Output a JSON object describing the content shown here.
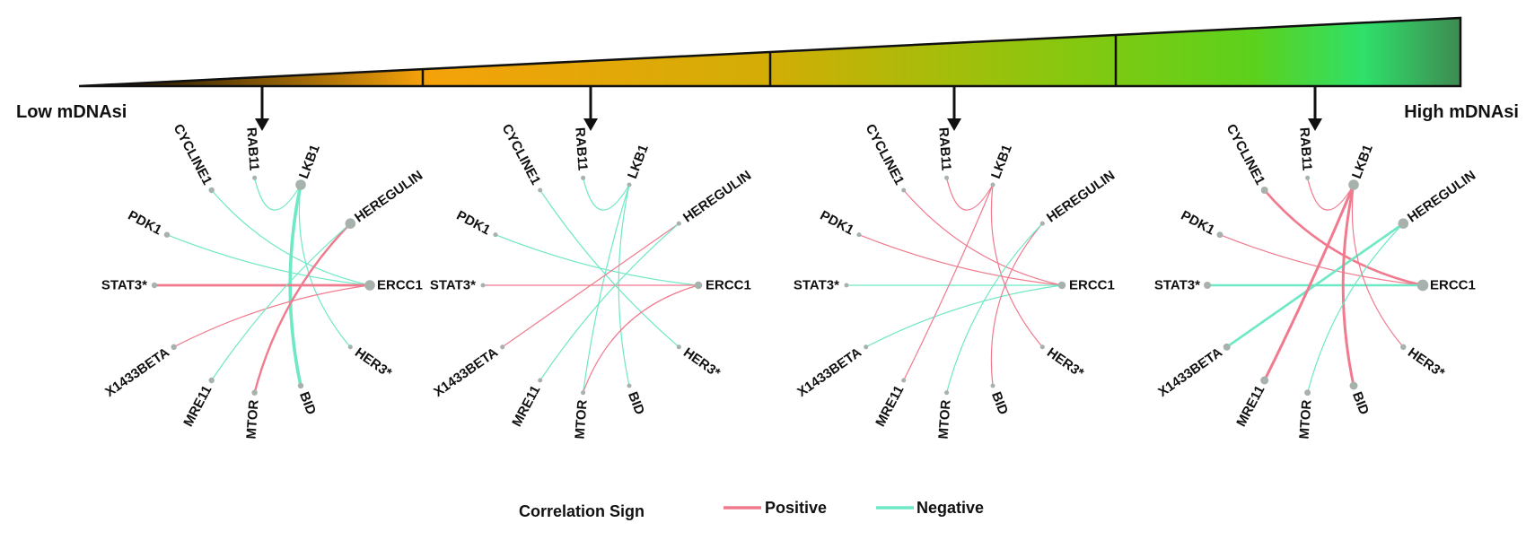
{
  "gradient": {
    "low_label": "Low mDNAsi",
    "high_label": "High mDNAsi",
    "colors": [
      "#000000",
      "#f5a20a",
      "#d2ad05",
      "#8cc60e",
      "#5cd11c",
      "#2fe06a",
      "#3e8a52"
    ]
  },
  "nodes": [
    "CYCLINE1",
    "RAB11",
    "LKB1",
    "HEREGULIN",
    "ERCC1",
    "HER3*",
    "BID",
    "MTOR",
    "MRE11",
    "X1433BETA",
    "STAT3*",
    "PDK1"
  ],
  "colors": {
    "positive": "#f07a8e",
    "negative": "#6ee8c5",
    "node": "#a8b2ad"
  },
  "legend": {
    "title": "Correlation Sign",
    "positive": "Positive",
    "negative": "Negative"
  },
  "networks": [
    {
      "node_weight": {
        "LKB1": 2,
        "HEREGULIN": 2,
        "ERCC1": 2,
        "MTOR": 1,
        "BID": 1,
        "MRE11": 1,
        "X1433BETA": 1,
        "STAT3*": 1,
        "CYCLINE1": 1,
        "PDK1": 1
      },
      "edges": [
        {
          "from": "RAB11",
          "to": "LKB1",
          "sign": "negative",
          "weight": 1
        },
        {
          "from": "LKB1",
          "to": "BID",
          "sign": "negative",
          "weight": 3
        },
        {
          "from": "LKB1",
          "to": "HER3*",
          "sign": "negative",
          "weight": 1
        },
        {
          "from": "CYCLINE1",
          "to": "ERCC1",
          "sign": "negative",
          "weight": 1
        },
        {
          "from": "PDK1",
          "to": "ERCC1",
          "sign": "negative",
          "weight": 1
        },
        {
          "from": "STAT3*",
          "to": "ERCC1",
          "sign": "positive",
          "weight": 2.2
        },
        {
          "from": "X1433BETA",
          "to": "ERCC1",
          "sign": "positive",
          "weight": 1
        },
        {
          "from": "HEREGULIN",
          "to": "MTOR",
          "sign": "positive",
          "weight": 2
        },
        {
          "from": "HEREGULIN",
          "to": "MRE11",
          "sign": "negative",
          "weight": 1
        }
      ]
    },
    {
      "node_weight": {
        "ERCC1": 1.4
      },
      "edges": [
        {
          "from": "RAB11",
          "to": "LKB1",
          "sign": "negative",
          "weight": 1
        },
        {
          "from": "LKB1",
          "to": "MTOR",
          "sign": "negative",
          "weight": 1
        },
        {
          "from": "LKB1",
          "to": "BID",
          "sign": "negative",
          "weight": 1
        },
        {
          "from": "CYCLINE1",
          "to": "HER3*",
          "sign": "negative",
          "weight": 1
        },
        {
          "from": "PDK1",
          "to": "ERCC1",
          "sign": "negative",
          "weight": 1
        },
        {
          "from": "STAT3*",
          "to": "ERCC1",
          "sign": "positive",
          "weight": 1
        },
        {
          "from": "X1433BETA",
          "to": "HEREGULIN",
          "sign": "positive",
          "weight": 1
        },
        {
          "from": "HEREGULIN",
          "to": "MRE11",
          "sign": "negative",
          "weight": 1
        },
        {
          "from": "MTOR",
          "to": "ERCC1",
          "sign": "positive",
          "weight": 1
        }
      ]
    },
    {
      "node_weight": {
        "ERCC1": 1.4
      },
      "edges": [
        {
          "from": "RAB11",
          "to": "LKB1",
          "sign": "positive",
          "weight": 1
        },
        {
          "from": "CYCLINE1",
          "to": "ERCC1",
          "sign": "positive",
          "weight": 1
        },
        {
          "from": "PDK1",
          "to": "ERCC1",
          "sign": "positive",
          "weight": 1
        },
        {
          "from": "STAT3*",
          "to": "ERCC1",
          "sign": "negative",
          "weight": 1
        },
        {
          "from": "X1433BETA",
          "to": "ERCC1",
          "sign": "negative",
          "weight": 1
        },
        {
          "from": "LKB1",
          "to": "MRE11",
          "sign": "positive",
          "weight": 1
        },
        {
          "from": "LKB1",
          "to": "HER3*",
          "sign": "positive",
          "weight": 1
        },
        {
          "from": "HEREGULIN",
          "to": "BID",
          "sign": "positive",
          "weight": 1
        },
        {
          "from": "HEREGULIN",
          "to": "MTOR",
          "sign": "negative",
          "weight": 1
        }
      ]
    },
    {
      "node_weight": {
        "LKB1": 2,
        "HEREGULIN": 2,
        "ERCC1": 2.2,
        "MRE11": 1.5,
        "BID": 1.5,
        "X1433BETA": 1.3,
        "STAT3*": 1.3,
        "CYCLINE1": 1.3,
        "PDK1": 1.1,
        "MTOR": 1.1,
        "HER3*": 1
      },
      "edges": [
        {
          "from": "RAB11",
          "to": "LKB1",
          "sign": "positive",
          "weight": 1
        },
        {
          "from": "CYCLINE1",
          "to": "ERCC1",
          "sign": "positive",
          "weight": 2.2
        },
        {
          "from": "PDK1",
          "to": "ERCC1",
          "sign": "positive",
          "weight": 1
        },
        {
          "from": "STAT3*",
          "to": "ERCC1",
          "sign": "negative",
          "weight": 2
        },
        {
          "from": "X1433BETA",
          "to": "HEREGULIN",
          "sign": "negative",
          "weight": 2.2
        },
        {
          "from": "LKB1",
          "to": "MRE11",
          "sign": "positive",
          "weight": 2.5
        },
        {
          "from": "LKB1",
          "to": "BID",
          "sign": "positive",
          "weight": 2.5
        },
        {
          "from": "HEREGULIN",
          "to": "MTOR",
          "sign": "negative",
          "weight": 1
        },
        {
          "from": "LKB1",
          "to": "HER3*",
          "sign": "positive",
          "weight": 1
        }
      ]
    }
  ]
}
